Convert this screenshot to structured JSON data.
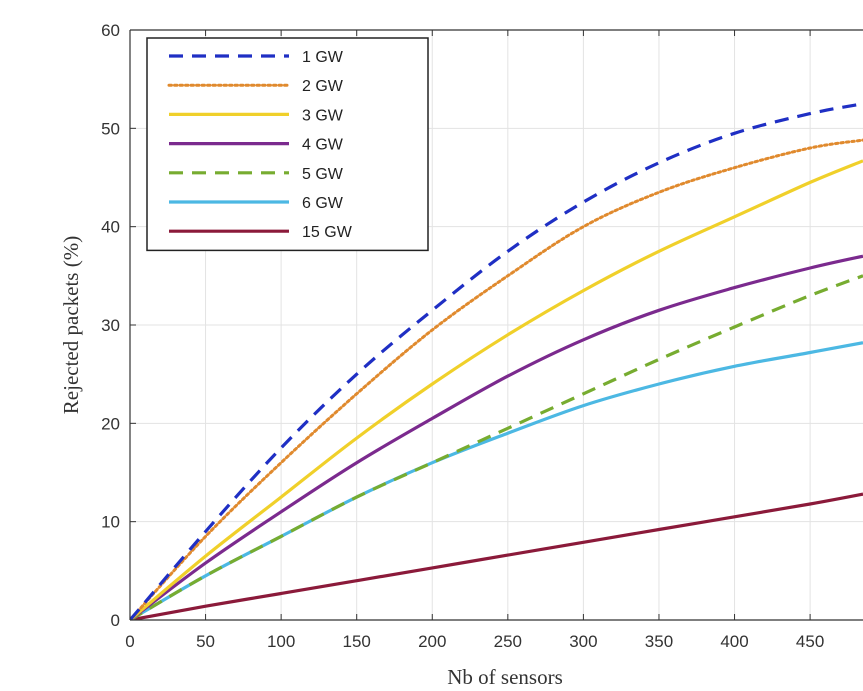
{
  "chart_data": {
    "type": "line",
    "title": "",
    "xlabel": "Nb of sensors",
    "ylabel": "Rejected packets (%)",
    "xlim": [
      0,
      485
    ],
    "ylim": [
      0,
      60
    ],
    "x_ticks": [
      0,
      50,
      100,
      150,
      200,
      250,
      300,
      350,
      400,
      450
    ],
    "y_ticks": [
      0,
      10,
      20,
      30,
      40,
      50,
      60
    ],
    "grid": true,
    "legend_position": "top-left",
    "x": [
      0,
      50,
      100,
      150,
      200,
      250,
      300,
      350,
      400,
      450,
      485
    ],
    "series": [
      {
        "name": "1 GW",
        "color": "#1f2fc4",
        "style": "dashed",
        "values": [
          0,
          9,
          17.5,
          25,
          31.5,
          37.5,
          42.5,
          46.5,
          49.5,
          51.5,
          52.5
        ]
      },
      {
        "name": "2 GW",
        "color": "#e08a2e",
        "style": "dotted",
        "values": [
          0,
          8.5,
          16,
          23,
          29.5,
          35,
          40,
          43.5,
          46,
          48,
          48.8
        ]
      },
      {
        "name": "3 GW",
        "color": "#f0d02a",
        "style": "solid",
        "values": [
          0,
          6.5,
          12.5,
          18.5,
          24,
          29,
          33.5,
          37.5,
          41,
          44.5,
          46.7
        ]
      },
      {
        "name": "4 GW",
        "color": "#7b2a8e",
        "style": "solid",
        "values": [
          0,
          5.8,
          11,
          16,
          20.5,
          24.8,
          28.5,
          31.5,
          33.8,
          35.8,
          37
        ]
      },
      {
        "name": "5 GW",
        "color": "#77ac30",
        "style": "dashed",
        "values": [
          0,
          4.5,
          8.5,
          12.5,
          16,
          19.5,
          23,
          26.5,
          29.8,
          33,
          35
        ]
      },
      {
        "name": "6 GW",
        "color": "#4cb8e3",
        "style": "solid",
        "values": [
          0,
          4.5,
          8.5,
          12.5,
          16,
          19,
          21.8,
          24,
          25.8,
          27.2,
          28.2
        ]
      },
      {
        "name": "15 GW",
        "color": "#8b1a3a",
        "style": "solid",
        "values": [
          0,
          1.4,
          2.7,
          4,
          5.3,
          6.6,
          7.9,
          9.2,
          10.5,
          11.8,
          12.8
        ]
      }
    ]
  }
}
